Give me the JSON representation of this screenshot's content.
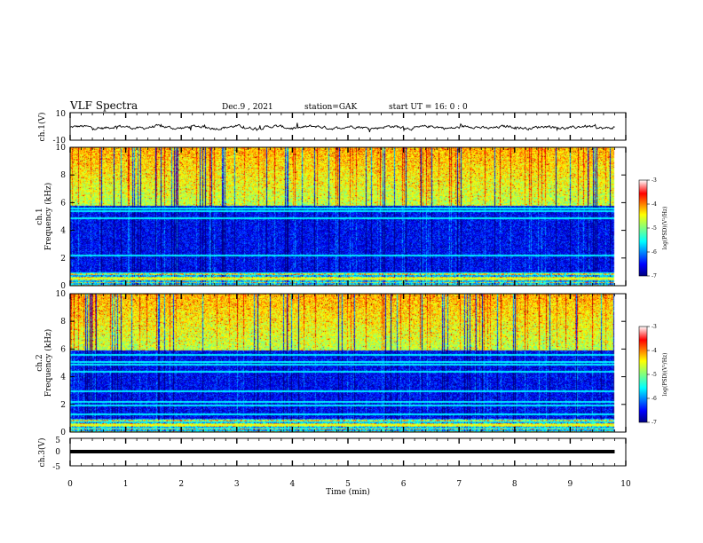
{
  "header": {
    "title": "VLF Spectra",
    "date": "Dec.9 , 2021",
    "station": "station=GAK",
    "start": "start UT = 16: 0 : 0"
  },
  "colors": {
    "jet": [
      "#000080",
      "#0000ff",
      "#00ffff",
      "#80ff80",
      "#ffff00",
      "#ff8000",
      "#ff0000",
      "#800000"
    ],
    "trace": "#000000"
  },
  "chart_data": [
    {
      "type": "line",
      "ylabel": "ch.1(V)",
      "ylim": [
        -10,
        10
      ],
      "yticks": [
        "10",
        "-10"
      ],
      "xlim": [
        0,
        10
      ],
      "description_values": {
        "approx_mean": 0,
        "approx_amplitude": 2
      }
    },
    {
      "type": "heatmap",
      "ylabel_top": "ch.1",
      "ylabel": "Frequency (kHz)",
      "ylim": [
        0,
        10
      ],
      "yticks": [
        "0",
        "2",
        "4",
        "6",
        "8",
        "10"
      ],
      "xlim": [
        0,
        10
      ],
      "colorbar": {
        "label": "log(PSD)(V²/Hz)",
        "ticks": [
          "-3",
          "-4",
          "-5",
          "-6",
          "-7"
        ],
        "range": [
          -7,
          -3
        ]
      }
    },
    {
      "type": "heatmap",
      "ylabel_top": "ch.2",
      "ylabel": "Frequency (kHz)",
      "ylim": [
        0,
        10
      ],
      "yticks": [
        "0",
        "2",
        "4",
        "6",
        "8",
        "10"
      ],
      "xlim": [
        0,
        10
      ],
      "colorbar": {
        "label": "log(PSD)(V²/Hz)",
        "ticks": [
          "-3",
          "-4",
          "-5",
          "-6",
          "-7"
        ],
        "range": [
          -7,
          -3
        ]
      }
    },
    {
      "type": "line",
      "ylabel": "ch.3(V)",
      "ylim": [
        -5,
        5
      ],
      "yticks": [
        "5",
        "0",
        "-5"
      ],
      "values": [
        -0.8,
        -0.8
      ],
      "x": [
        0,
        9.8
      ],
      "xlim": [
        0,
        10
      ]
    }
  ],
  "xaxis": {
    "label": "Time (min)",
    "ticks": [
      "0",
      "1",
      "2",
      "3",
      "4",
      "5",
      "6",
      "7",
      "8",
      "9",
      "10"
    ]
  }
}
